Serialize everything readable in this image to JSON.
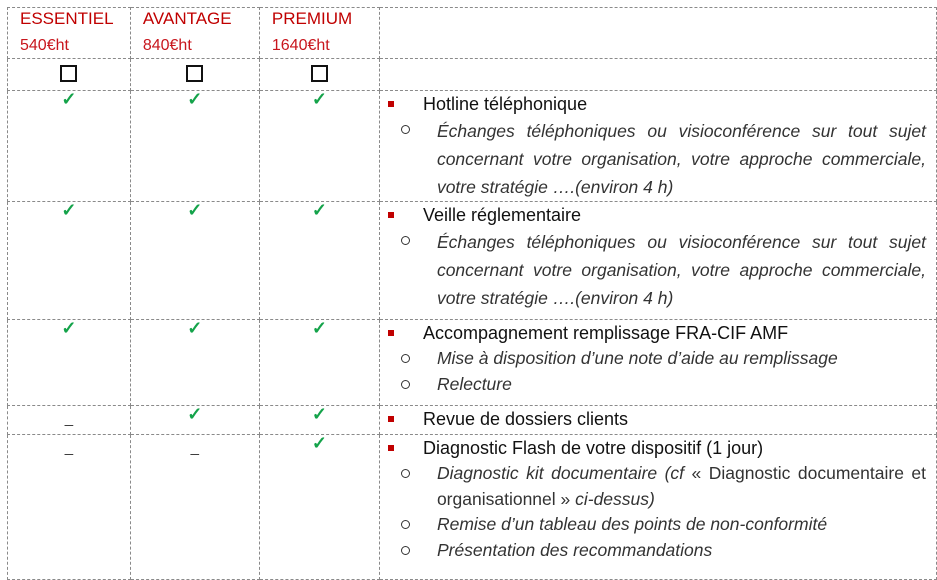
{
  "plans": [
    {
      "name": "ESSENTIEL",
      "price": "540€ht"
    },
    {
      "name": "AVANTAGE",
      "price": "840€ht"
    },
    {
      "name": "PREMIUM",
      "price": "1640€ht"
    }
  ],
  "colors": {
    "accent": "#c00000",
    "check": "#14a34a"
  },
  "check_symbol": "✓",
  "dash_symbol": "_",
  "rows": [
    {
      "title": "Hotline téléphonique",
      "included": [
        true,
        true,
        true
      ],
      "subs": [
        "Échanges téléphoniques ou visioconférence sur tout sujet concernant votre organisation, votre approche commerciale, votre stratégie ….(environ 4 h)"
      ]
    },
    {
      "title": "Veille réglementaire",
      "included": [
        true,
        true,
        true
      ],
      "subs": [
        "Échanges téléphoniques ou visioconférence sur tout sujet concernant votre organisation, votre approche commerciale, votre stratégie ….(environ 4 h)"
      ]
    },
    {
      "title": "Accompagnement remplissage FRA-CIF AMF",
      "included": [
        true,
        true,
        true
      ],
      "subs": [
        "Mise à disposition d’une note d’aide au remplissage",
        "Relecture"
      ]
    },
    {
      "title": "Revue de dossiers clients",
      "included": [
        false,
        true,
        true
      ],
      "subs": []
    },
    {
      "title": "Diagnostic Flash de votre dispositif  (1 jour)",
      "included": [
        false,
        false,
        true
      ],
      "subs_mixed": {
        "a": "Diagnostic kit documentaire (cf ",
        "b": "« Diagnostic documentaire et organisationnel »",
        "c": " ci-dessus)"
      },
      "subs": [
        "Remise d’un tableau des points de non-conformité",
        "Présentation des recommandations"
      ]
    }
  ]
}
